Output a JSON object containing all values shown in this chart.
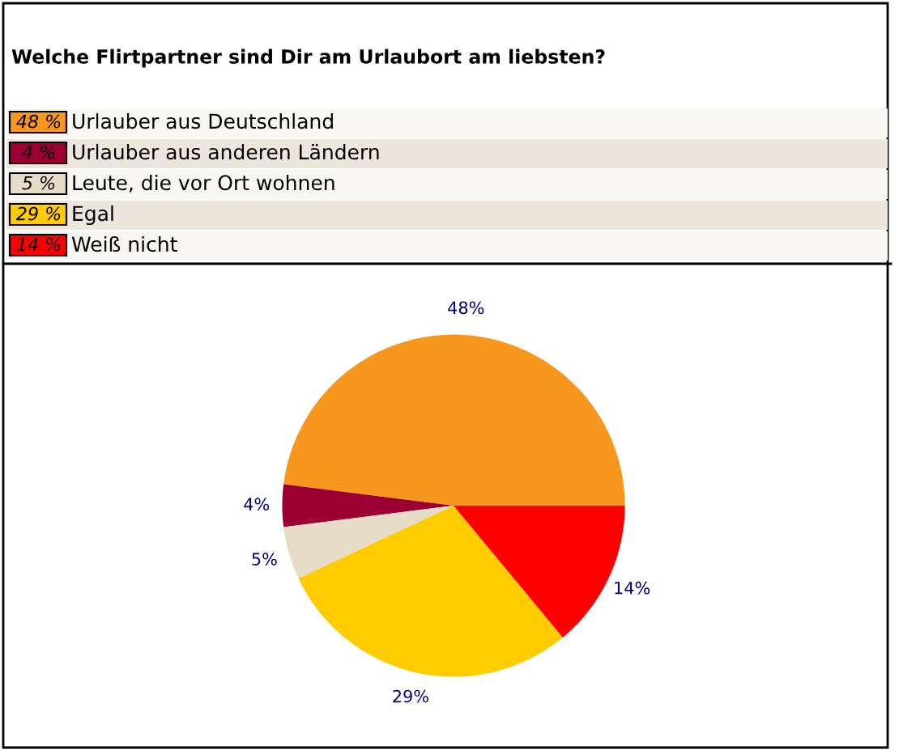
{
  "chart_data": {
    "type": "pie",
    "title": "Welche Flirtpartner sind Dir am Urlaubort am liebsten?",
    "categories": [
      "Urlauber aus Deutschland",
      "Urlauber aus anderen Ländern",
      "Leute, die vor Ort wohnen",
      "Egal",
      "Weiß nicht"
    ],
    "values": [
      48,
      4,
      5,
      29,
      14
    ],
    "colors": [
      "#f7971e",
      "#9c0032",
      "#e6dcc8",
      "#ffcc00",
      "#ff0000"
    ],
    "value_labels": [
      "48%",
      "4%",
      "5%",
      "29%",
      "14%"
    ],
    "annotations": [
      "48 %",
      "4 %",
      "5 %",
      "29 %",
      "14 %"
    ],
    "legend": "top"
  }
}
